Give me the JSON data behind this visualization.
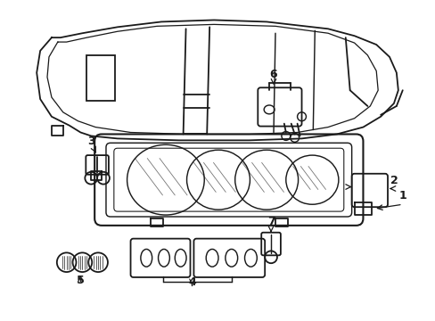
{
  "background_color": "#ffffff",
  "line_color": "#1a1a1a",
  "line_width": 1.3,
  "fig_width": 4.89,
  "fig_height": 3.6,
  "dpi": 100
}
